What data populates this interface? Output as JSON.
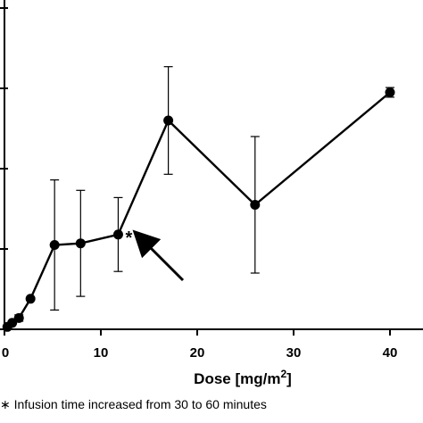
{
  "chart_data": {
    "type": "line",
    "xlabel": "Dose [mg/m²]",
    "ylabel": "",
    "xlim": [
      0,
      44
    ],
    "x_ticks": [
      0,
      10,
      20,
      30,
      40
    ],
    "x_tick_labels": [
      "0",
      "10",
      "20",
      "30",
      "40"
    ],
    "series": [
      {
        "points": [
          {
            "x": 0.3,
            "y": 0.3,
            "err": 0
          },
          {
            "x": 0.8,
            "y": 0.8,
            "err": 0
          },
          {
            "x": 1.5,
            "y": 1.4,
            "err": 0.4
          },
          {
            "x": 2.7,
            "y": 3.8,
            "err": 0
          },
          {
            "x": 5.2,
            "y": 10.5,
            "err": 8.1
          },
          {
            "x": 7.9,
            "y": 10.7,
            "err": 6.6
          },
          {
            "x": 11.8,
            "y": 11.8,
            "err": 4.6
          },
          {
            "x": 17.0,
            "y": 26.0,
            "err": 6.7
          },
          {
            "x": 26.0,
            "y": 15.5,
            "err": 8.5
          },
          {
            "x": 40.0,
            "y": 29.5,
            "err": 0.6
          }
        ]
      }
    ],
    "annotation": {
      "marker": "*",
      "at_x": 11.8
    }
  },
  "footnote": "Infusion time increased from 30 to 60 minutes",
  "colors": {
    "line": "#000000",
    "marker": "#000000"
  }
}
